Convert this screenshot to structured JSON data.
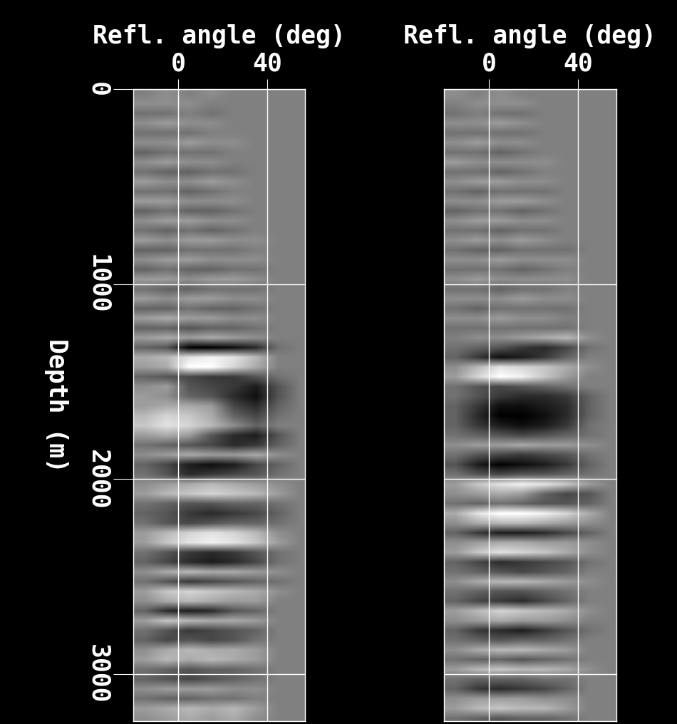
{
  "chart_data": [
    {
      "type": "heatmap",
      "x_label": "Refl. angle (deg)",
      "y_label": "Depth (m)",
      "color": "gray",
      "grid": true,
      "xlim": [
        -20,
        57
      ],
      "ylim": [
        3240,
        0
      ],
      "xticks": [
        0,
        40
      ],
      "yticks": [
        0,
        1000,
        2000,
        3000
      ],
      "x": [
        -15,
        -5,
        5,
        15,
        25,
        35,
        45,
        55
      ],
      "y": [
        25,
        75,
        125,
        175,
        225,
        275,
        325,
        375,
        425,
        475,
        525,
        575,
        625,
        675,
        725,
        775,
        825,
        875,
        925,
        975,
        1025,
        1075,
        1125,
        1175,
        1225,
        1275,
        1325,
        1375,
        1425,
        1475,
        1525,
        1575,
        1625,
        1675,
        1725,
        1775,
        1825,
        1875,
        1925,
        1975,
        2025,
        2075,
        2125,
        2175,
        2225,
        2275,
        2325,
        2375,
        2425,
        2475,
        2525,
        2575,
        2625,
        2675,
        2725,
        2775,
        2825,
        2875,
        2925,
        2975,
        3025,
        3075,
        3125,
        3175,
        3225
      ],
      "values": [
        [
          0,
          1,
          0,
          1,
          0,
          0,
          0,
          0
        ],
        [
          1,
          1,
          1,
          0,
          0,
          0,
          0,
          0
        ],
        [
          -1,
          -1,
          0,
          -1,
          0,
          0,
          0,
          0
        ],
        [
          1,
          2,
          1,
          1,
          0,
          0,
          0,
          0
        ],
        [
          -1,
          -1,
          -1,
          0,
          0,
          0,
          0,
          0
        ],
        [
          1,
          1,
          2,
          1,
          1,
          0,
          0,
          0
        ],
        [
          -2,
          -1,
          -1,
          -1,
          0,
          0,
          0,
          0
        ],
        [
          1,
          2,
          1,
          1,
          0,
          0,
          0,
          0
        ],
        [
          -1,
          -2,
          -2,
          -1,
          -1,
          0,
          0,
          0
        ],
        [
          2,
          1,
          1,
          2,
          1,
          0,
          0,
          0
        ],
        [
          -1,
          -1,
          -2,
          -1,
          0,
          0,
          0,
          0
        ],
        [
          2,
          2,
          1,
          1,
          1,
          0,
          0,
          0
        ],
        [
          -2,
          -1,
          -2,
          -2,
          -1,
          0,
          0,
          0
        ],
        [
          1,
          2,
          2,
          1,
          1,
          0,
          0,
          0
        ],
        [
          -1,
          -2,
          -1,
          -2,
          -1,
          0,
          0,
          0
        ],
        [
          2,
          1,
          2,
          2,
          1,
          1,
          0,
          0
        ],
        [
          -2,
          -2,
          -1,
          -1,
          -1,
          0,
          0,
          0
        ],
        [
          1,
          2,
          2,
          1,
          1,
          1,
          0,
          0
        ],
        [
          -2,
          -1,
          -2,
          -2,
          -1,
          -1,
          0,
          0
        ],
        [
          2,
          2,
          1,
          2,
          2,
          1,
          0,
          0
        ],
        [
          -1,
          -2,
          -2,
          -1,
          -1,
          -1,
          0,
          0
        ],
        [
          2,
          1,
          2,
          2,
          1,
          1,
          0,
          0
        ],
        [
          -2,
          -2,
          -1,
          -2,
          -2,
          -1,
          0,
          0
        ],
        [
          2,
          3,
          2,
          2,
          1,
          1,
          0,
          0
        ],
        [
          -2,
          -2,
          -3,
          -2,
          -2,
          -1,
          0,
          0
        ],
        [
          2,
          3,
          2,
          3,
          2,
          1,
          0,
          0
        ],
        [
          -2,
          -3,
          -9,
          -9,
          -8,
          -6,
          -1,
          0
        ],
        [
          3,
          4,
          7,
          8,
          7,
          4,
          0,
          0
        ],
        [
          2,
          3,
          9,
          9,
          6,
          3,
          0,
          0
        ],
        [
          -2,
          -3,
          -4,
          -5,
          -5,
          -3,
          -1,
          0
        ],
        [
          1,
          2,
          -3,
          -4,
          -5,
          -7,
          -3,
          0
        ],
        [
          2,
          1,
          -2,
          -3,
          -6,
          -8,
          -3,
          0
        ],
        [
          2,
          3,
          3,
          2,
          -4,
          -6,
          -2,
          0
        ],
        [
          4,
          6,
          5,
          3,
          -2,
          -4,
          -1,
          0
        ],
        [
          5,
          7,
          6,
          4,
          1,
          -2,
          0,
          0
        ],
        [
          2,
          3,
          2,
          -3,
          -6,
          -7,
          -3,
          0
        ],
        [
          -1,
          -2,
          -3,
          -4,
          -6,
          -5,
          -2,
          0
        ],
        [
          1,
          2,
          3,
          2,
          2,
          3,
          1,
          0
        ],
        [
          -2,
          -4,
          -7,
          -8,
          -7,
          -4,
          -2,
          0
        ],
        [
          -1,
          -3,
          -6,
          -5,
          -4,
          -3,
          -1,
          0
        ],
        [
          1,
          2,
          3,
          4,
          3,
          2,
          1,
          0
        ],
        [
          2,
          4,
          5,
          6,
          5,
          4,
          2,
          0
        ],
        [
          -1,
          -2,
          -3,
          -3,
          -2,
          -2,
          -1,
          0
        ],
        [
          -2,
          -3,
          -5,
          -6,
          -5,
          -4,
          -2,
          0
        ],
        [
          -1,
          -3,
          -4,
          -3,
          -2,
          -2,
          -1,
          0
        ],
        [
          2,
          4,
          6,
          7,
          6,
          4,
          1,
          0
        ],
        [
          2,
          5,
          7,
          8,
          7,
          5,
          2,
          0
        ],
        [
          -1,
          -3,
          -5,
          -6,
          -5,
          -3,
          -1,
          0
        ],
        [
          -2,
          -4,
          -6,
          -7,
          -6,
          -4,
          -1,
          0
        ],
        [
          1,
          3,
          4,
          3,
          3,
          2,
          1,
          0
        ],
        [
          -1,
          -3,
          -5,
          -4,
          -3,
          -2,
          -1,
          0
        ],
        [
          2,
          5,
          6,
          5,
          4,
          3,
          1,
          0
        ],
        [
          1,
          3,
          4,
          3,
          2,
          2,
          0,
          0
        ],
        [
          -2,
          -6,
          -7,
          -6,
          -3,
          -2,
          0,
          0
        ],
        [
          2,
          5,
          4,
          3,
          3,
          2,
          0,
          0
        ],
        [
          -1,
          -3,
          -5,
          -4,
          -3,
          -2,
          0,
          0
        ],
        [
          -2,
          -4,
          -3,
          -4,
          -3,
          -1,
          0,
          0
        ],
        [
          1,
          3,
          4,
          3,
          3,
          2,
          0,
          0
        ],
        [
          2,
          4,
          3,
          4,
          3,
          2,
          0,
          0
        ],
        [
          -1,
          -2,
          -3,
          -2,
          -2,
          -1,
          0,
          0
        ],
        [
          -2,
          -3,
          -4,
          -3,
          -2,
          -1,
          0,
          0
        ],
        [
          1,
          2,
          2,
          2,
          1,
          1,
          0,
          0
        ],
        [
          -1,
          -2,
          -2,
          -1,
          -1,
          0,
          0,
          0
        ],
        [
          2,
          3,
          4,
          3,
          4,
          2,
          0,
          0
        ],
        [
          1,
          2,
          3,
          2,
          3,
          1,
          0,
          0
        ]
      ]
    },
    {
      "type": "heatmap",
      "x_label": "Refl. angle (deg)",
      "color": "gray",
      "grid": true,
      "tick_labels": "x",
      "xlim": [
        -20,
        57
      ],
      "ylim": [
        3240,
        0
      ],
      "xticks": [
        0,
        40
      ],
      "yticks": [
        0,
        1000,
        2000,
        3000
      ],
      "x": [
        -15,
        -5,
        5,
        15,
        25,
        35,
        45,
        55
      ],
      "y": [
        25,
        75,
        125,
        175,
        225,
        275,
        325,
        375,
        425,
        475,
        525,
        575,
        625,
        675,
        725,
        775,
        825,
        875,
        925,
        975,
        1025,
        1075,
        1125,
        1175,
        1225,
        1275,
        1325,
        1375,
        1425,
        1475,
        1525,
        1575,
        1625,
        1675,
        1725,
        1775,
        1825,
        1875,
        1925,
        1975,
        2025,
        2075,
        2125,
        2175,
        2225,
        2275,
        2325,
        2375,
        2425,
        2475,
        2525,
        2575,
        2625,
        2675,
        2725,
        2775,
        2825,
        2875,
        2925,
        2975,
        3025,
        3075,
        3125,
        3175,
        3225
      ],
      "values": [
        [
          1,
          0,
          1,
          0,
          0,
          0,
          0,
          0
        ],
        [
          0,
          1,
          1,
          1,
          0,
          0,
          0,
          0
        ],
        [
          -1,
          0,
          -1,
          -1,
          0,
          0,
          0,
          0
        ],
        [
          1,
          1,
          2,
          1,
          0,
          0,
          0,
          0
        ],
        [
          -1,
          -1,
          -1,
          -1,
          0,
          0,
          0,
          0
        ],
        [
          1,
          2,
          1,
          1,
          0,
          0,
          0,
          0
        ],
        [
          -1,
          -1,
          -2,
          -1,
          0,
          0,
          0,
          0
        ],
        [
          2,
          1,
          1,
          1,
          1,
          0,
          0,
          0
        ],
        [
          -1,
          -1,
          -2,
          -1,
          0,
          0,
          0,
          0
        ],
        [
          1,
          2,
          2,
          1,
          1,
          0,
          0,
          0
        ],
        [
          -1,
          -2,
          -1,
          -1,
          -1,
          0,
          0,
          0
        ],
        [
          1,
          1,
          2,
          2,
          1,
          0,
          0,
          0
        ],
        [
          -2,
          -1,
          -1,
          -2,
          -1,
          0,
          0,
          0
        ],
        [
          1,
          2,
          2,
          1,
          1,
          0,
          0,
          0
        ],
        [
          -1,
          -1,
          -2,
          -1,
          -1,
          0,
          0,
          0
        ],
        [
          1,
          2,
          1,
          2,
          1,
          0,
          0,
          0
        ],
        [
          -1,
          -2,
          -2,
          -1,
          -1,
          -1,
          0,
          0
        ],
        [
          1,
          1,
          2,
          1,
          1,
          1,
          0,
          0
        ],
        [
          -1,
          -1,
          -1,
          -2,
          -1,
          0,
          0,
          0
        ],
        [
          1,
          2,
          1,
          1,
          1,
          1,
          0,
          0
        ],
        [
          -1,
          -1,
          -2,
          -1,
          -1,
          0,
          0,
          0
        ],
        [
          1,
          1,
          1,
          2,
          1,
          1,
          0,
          0
        ],
        [
          -1,
          -2,
          -1,
          -1,
          -1,
          -1,
          0,
          0
        ],
        [
          1,
          1,
          2,
          1,
          1,
          0,
          0,
          0
        ],
        [
          -1,
          -1,
          -1,
          -1,
          -1,
          -1,
          0,
          0
        ],
        [
          0,
          1,
          1,
          2,
          3,
          4,
          1,
          0
        ],
        [
          -1,
          -2,
          -3,
          -5,
          -6,
          -4,
          -1,
          0
        ],
        [
          -2,
          -5,
          -8,
          -7,
          -5,
          -2,
          0,
          0
        ],
        [
          1,
          4,
          7,
          6,
          5,
          3,
          1,
          0
        ],
        [
          2,
          6,
          9,
          8,
          5,
          2,
          0,
          0
        ],
        [
          -1,
          -3,
          -4,
          -3,
          -2,
          -1,
          0,
          0
        ],
        [
          -1,
          -3,
          -5,
          -6,
          -6,
          -5,
          -2,
          0
        ],
        [
          -2,
          -5,
          -8,
          -8,
          -7,
          -6,
          -2,
          0
        ],
        [
          -2,
          -6,
          -9,
          -9,
          -8,
          -6,
          -2,
          0
        ],
        [
          -2,
          -5,
          -7,
          -8,
          -7,
          -5,
          -1,
          0
        ],
        [
          -1,
          -2,
          -3,
          -4,
          -3,
          -2,
          -1,
          0
        ],
        [
          1,
          2,
          2,
          3,
          2,
          2,
          1,
          0
        ],
        [
          -1,
          -3,
          -4,
          -5,
          -4,
          -3,
          -1,
          0
        ],
        [
          -3,
          -7,
          -9,
          -8,
          -7,
          -5,
          -2,
          0
        ],
        [
          -1,
          -3,
          -4,
          -3,
          -3,
          -2,
          -1,
          0
        ],
        [
          2,
          5,
          7,
          8,
          7,
          5,
          2,
          0
        ],
        [
          1,
          2,
          3,
          2,
          -2,
          -4,
          -3,
          0
        ],
        [
          -1,
          -2,
          -1,
          -2,
          -3,
          -3,
          -2,
          0
        ],
        [
          3,
          7,
          9,
          9,
          8,
          6,
          3,
          0
        ],
        [
          1,
          3,
          4,
          4,
          3,
          2,
          1,
          0
        ],
        [
          -2,
          -5,
          -7,
          -7,
          -6,
          -4,
          -2,
          0
        ],
        [
          1,
          2,
          3,
          3,
          2,
          2,
          1,
          0
        ],
        [
          2,
          5,
          7,
          6,
          5,
          3,
          1,
          0
        ],
        [
          -2,
          -4,
          -6,
          -5,
          -4,
          -3,
          -1,
          0
        ],
        [
          -1,
          -2,
          -3,
          -4,
          -3,
          -2,
          0,
          0
        ],
        [
          1,
          3,
          4,
          4,
          3,
          2,
          1,
          0
        ],
        [
          -1,
          -2,
          -3,
          -3,
          -2,
          -1,
          0,
          0
        ],
        [
          -2,
          -4,
          -5,
          -6,
          -4,
          -2,
          0,
          0
        ],
        [
          2,
          4,
          6,
          5,
          4,
          3,
          1,
          0
        ],
        [
          1,
          2,
          3,
          2,
          2,
          1,
          0,
          0
        ],
        [
          -2,
          -5,
          -6,
          -7,
          -5,
          -3,
          -1,
          0
        ],
        [
          -1,
          -2,
          -3,
          -2,
          -2,
          -1,
          0,
          0
        ],
        [
          1,
          3,
          4,
          4,
          3,
          2,
          0,
          0
        ],
        [
          -1,
          -2,
          -2,
          -3,
          -2,
          -1,
          0,
          0
        ],
        [
          2,
          4,
          5,
          4,
          4,
          3,
          1,
          0
        ],
        [
          -1,
          -2,
          -2,
          -2,
          -1,
          -1,
          0,
          0
        ],
        [
          -2,
          -5,
          -6,
          -5,
          -4,
          -2,
          0,
          0
        ],
        [
          1,
          2,
          2,
          2,
          1,
          1,
          0,
          0
        ],
        [
          2,
          4,
          5,
          4,
          4,
          2,
          0,
          0
        ],
        [
          -1,
          -2,
          -3,
          -2,
          -2,
          -1,
          0,
          0
        ]
      ]
    }
  ]
}
